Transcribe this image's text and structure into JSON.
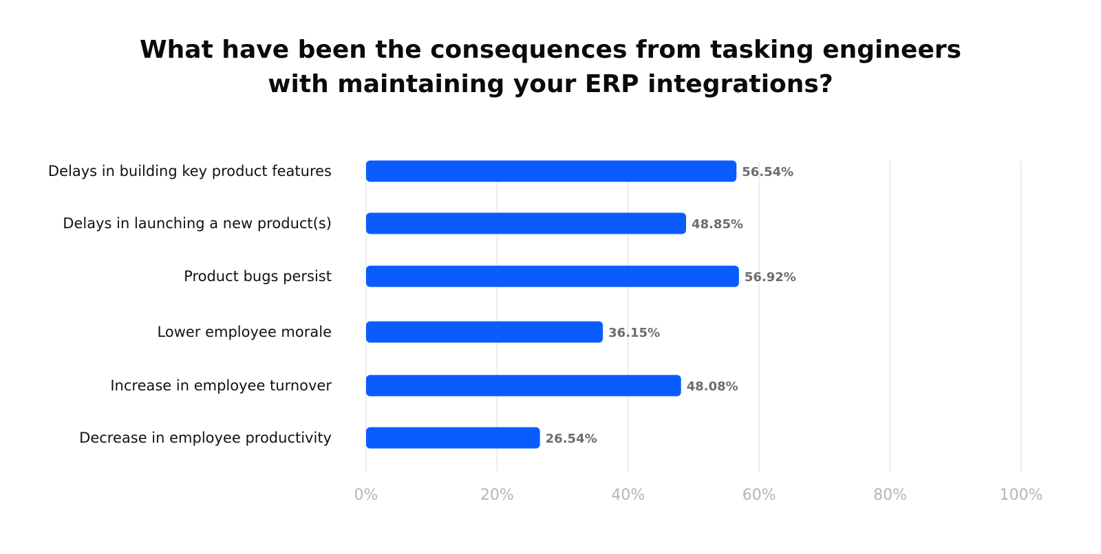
{
  "chart_data": {
    "type": "bar",
    "orientation": "horizontal",
    "title_lines": [
      "What have been the consequences from tasking engineers",
      "with maintaining your ERP integrations?"
    ],
    "categories": [
      "Delays in building key product features",
      "Delays in launching a new product(s)",
      "Product bugs persist",
      "Lower employee morale",
      "Increase in employee turnover",
      "Decrease in employee productivity"
    ],
    "values": [
      56.54,
      48.85,
      56.92,
      36.15,
      48.08,
      26.54
    ],
    "value_labels": [
      "56.54%",
      "48.85%",
      "56.92%",
      "36.15%",
      "48.08%",
      "26.54%"
    ],
    "xlim": [
      0,
      100
    ],
    "x_ticks": [
      0,
      20,
      40,
      60,
      80,
      100
    ],
    "x_tick_labels": [
      "0%",
      "20%",
      "40%",
      "60%",
      "80%",
      "100%"
    ],
    "grid": "vertical",
    "legend": "none",
    "colors": {
      "bar": "#0a5cff",
      "grid": "#e6e6ea",
      "value_label": "#6b6b73",
      "tick_label": "#b4b4bb",
      "category_label": "#111111",
      "title": "#0b0b0d"
    }
  }
}
